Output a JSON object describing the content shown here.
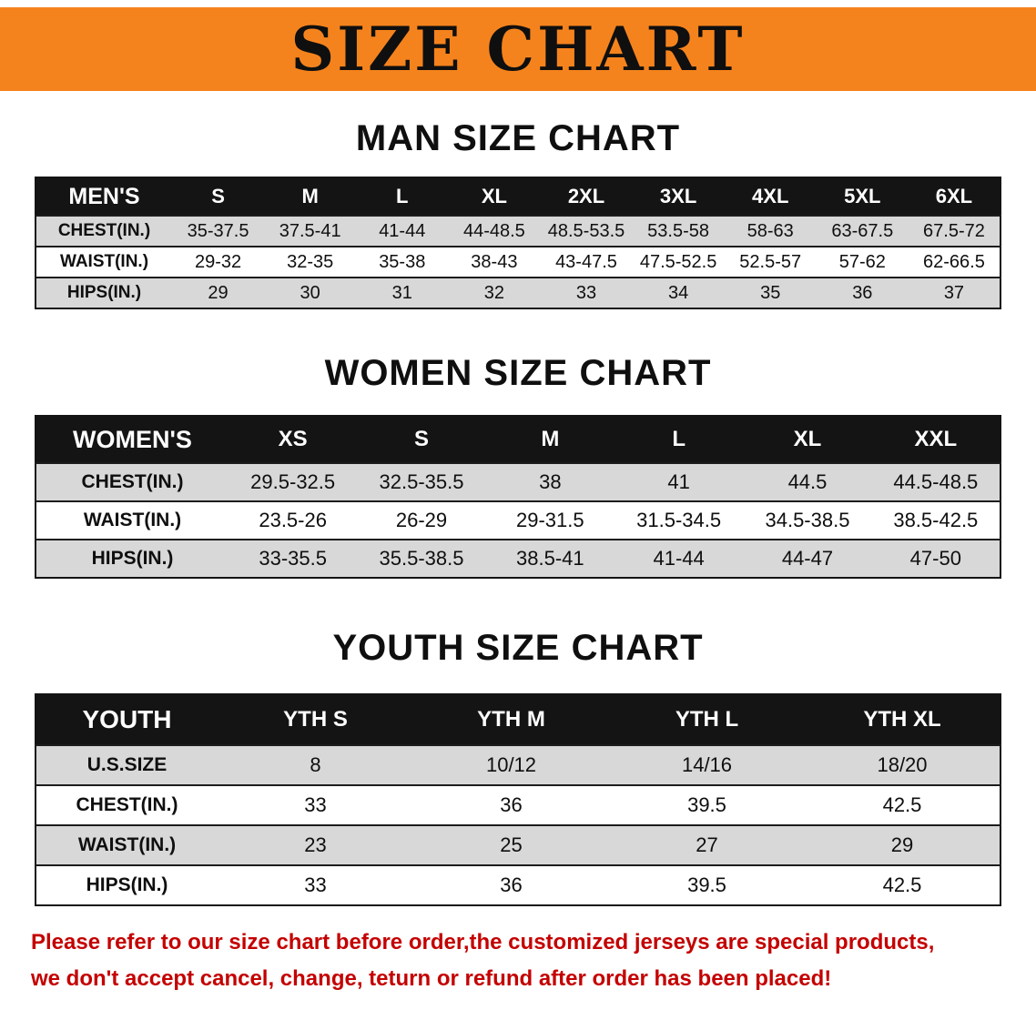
{
  "banner": {
    "title": "SIZE CHART"
  },
  "theme": {
    "banner_bg": "#f5831d",
    "header_bg": "#141414",
    "header_text": "#ffffff",
    "stripe_gray": "#d8d8d8",
    "notice_red": "#c40000",
    "text_black": "#0f0f0f"
  },
  "sections": [
    {
      "heading": "MAN SIZE CHART",
      "table": {
        "header": [
          "MEN'S",
          "S",
          "M",
          "L",
          "XL",
          "2XL",
          "3XL",
          "4XL",
          "5XL",
          "6XL"
        ],
        "rows": [
          [
            "CHEST(IN.)",
            "35-37.5",
            "37.5-41",
            "41-44",
            "44-48.5",
            "48.5-53.5",
            "53.5-58",
            "58-63",
            "63-67.5",
            "67.5-72"
          ],
          [
            "WAIST(IN.)",
            "29-32",
            "32-35",
            "35-38",
            "38-43",
            "43-47.5",
            "47.5-52.5",
            "52.5-57",
            "57-62",
            "62-66.5"
          ],
          [
            "HIPS(IN.)",
            "29",
            "30",
            "31",
            "32",
            "33",
            "34",
            "35",
            "36",
            "37"
          ]
        ]
      }
    },
    {
      "heading": "WOMEN SIZE CHART",
      "table": {
        "header": [
          "WOMEN'S",
          "XS",
          "S",
          "M",
          "L",
          "XL",
          "XXL"
        ],
        "rows": [
          [
            "CHEST(IN.)",
            "29.5-32.5",
            "32.5-35.5",
            "38",
            "41",
            "44.5",
            "44.5-48.5"
          ],
          [
            "WAIST(IN.)",
            "23.5-26",
            "26-29",
            "29-31.5",
            "31.5-34.5",
            "34.5-38.5",
            "38.5-42.5"
          ],
          [
            "HIPS(IN.)",
            "33-35.5",
            "35.5-38.5",
            "38.5-41",
            "41-44",
            "44-47",
            "47-50"
          ]
        ]
      }
    },
    {
      "heading": "YOUTH SIZE CHART",
      "table": {
        "header": [
          "YOUTH",
          "YTH S",
          "YTH M",
          "YTH L",
          "YTH XL"
        ],
        "rows": [
          [
            "U.S.SIZE",
            "8",
            "10/12",
            "14/16",
            "18/20"
          ],
          [
            "CHEST(IN.)",
            "33",
            "36",
            "39.5",
            "42.5"
          ],
          [
            "WAIST(IN.)",
            "23",
            "25",
            "27",
            "29"
          ],
          [
            "HIPS(IN.)",
            "33",
            "36",
            "39.5",
            "42.5"
          ]
        ]
      }
    }
  ],
  "notice": {
    "lines": [
      "Please refer to our size chart before order,the customized jerseys are special products,",
      "we don't accept cancel, change, teturn or refund after order has been placed!"
    ]
  }
}
